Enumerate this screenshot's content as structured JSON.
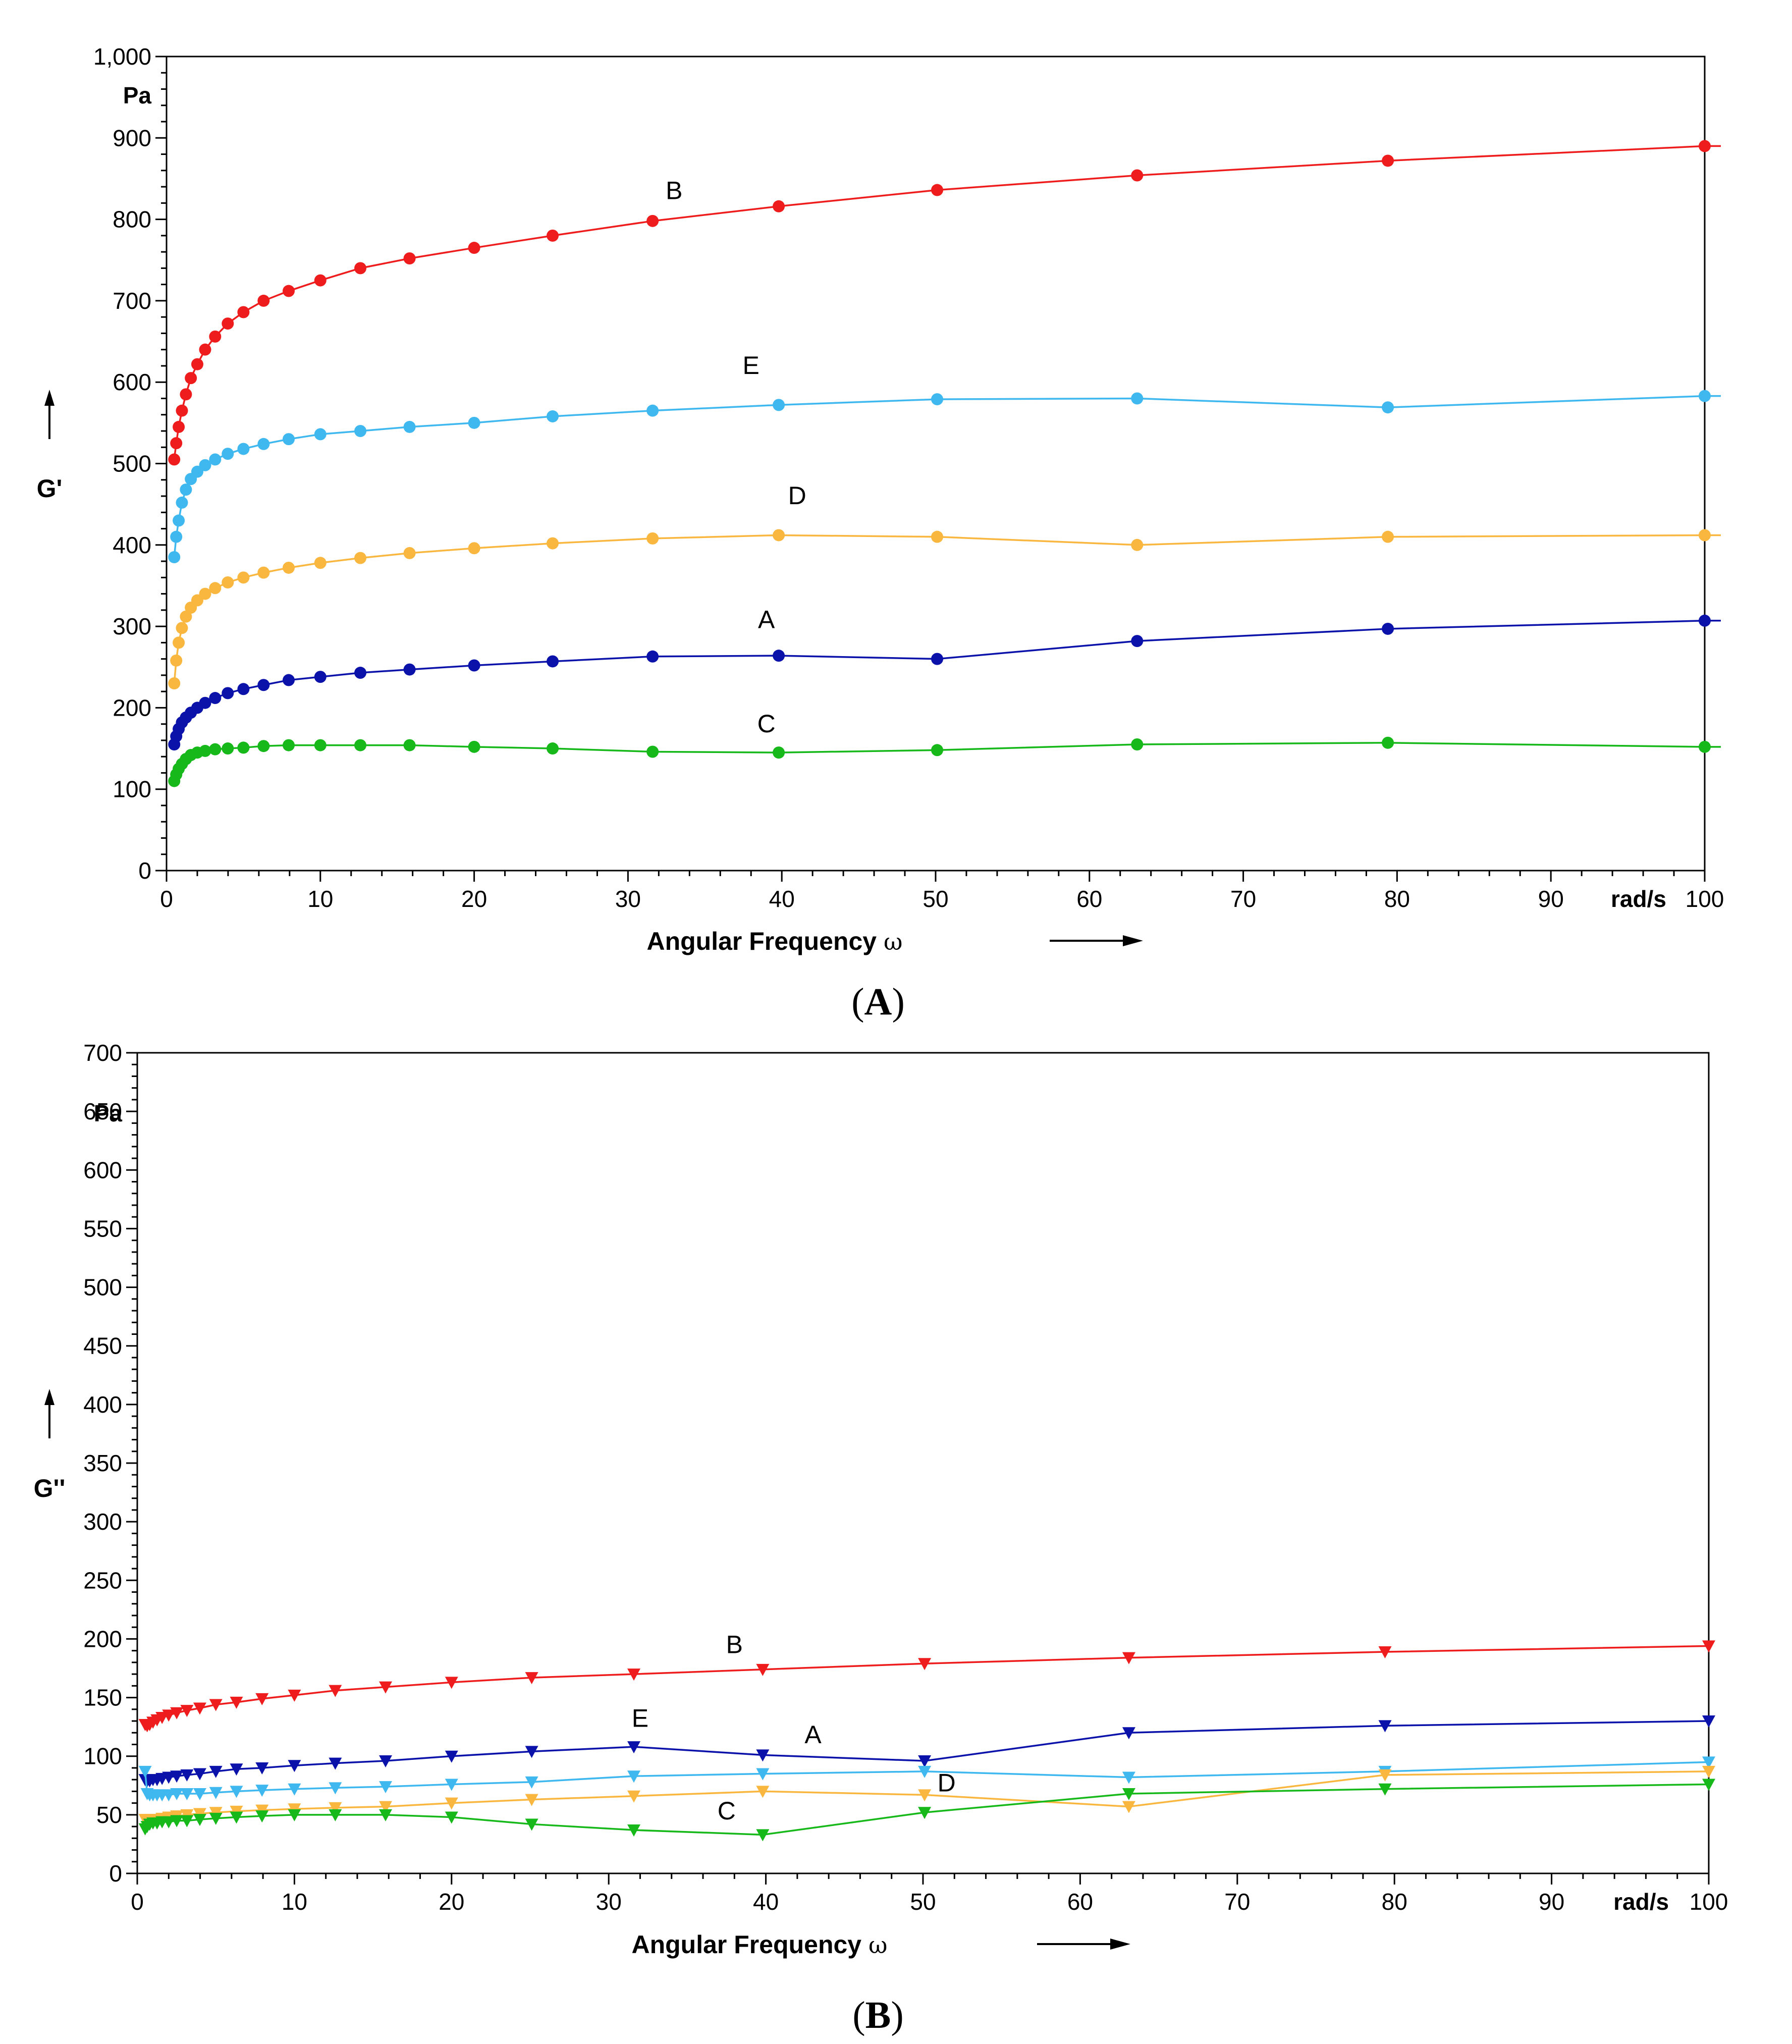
{
  "chart_data": [
    {
      "type": "line",
      "panel_label": "A",
      "ylabel": "G'",
      "yunit": "Pa",
      "xlabel": "Angular Frequency",
      "xsymbol": "ω",
      "xunit": "rad/s",
      "xlim": [
        0,
        100
      ],
      "ylim": [
        0,
        1000
      ],
      "xticks": [
        {
          "value": 0,
          "label": "0"
        },
        {
          "value": 10,
          "label": "10"
        },
        {
          "value": 20,
          "label": "20"
        },
        {
          "value": 30,
          "label": "30"
        },
        {
          "value": 40,
          "label": "40"
        },
        {
          "value": 50,
          "label": "50"
        },
        {
          "value": 60,
          "label": "60"
        },
        {
          "value": 70,
          "label": "70"
        },
        {
          "value": 80,
          "label": "80"
        },
        {
          "value": 90,
          "label": "90"
        },
        {
          "value": 100,
          "label": "100"
        }
      ],
      "yticks": [
        {
          "value": 0,
          "label": "0"
        },
        {
          "value": 100,
          "label": "100"
        },
        {
          "value": 200,
          "label": "200"
        },
        {
          "value": 300,
          "label": "300"
        },
        {
          "value": 400,
          "label": "400"
        },
        {
          "value": 500,
          "label": "500"
        },
        {
          "value": 600,
          "label": "600"
        },
        {
          "value": 700,
          "label": "700"
        },
        {
          "value": 800,
          "label": "800"
        },
        {
          "value": 900,
          "label": "900"
        },
        {
          "value": 1000,
          "label": "1,000"
        }
      ],
      "marker": "circle",
      "x": [
        0.5,
        0.63,
        0.79,
        1.0,
        1.26,
        1.58,
        2.0,
        2.51,
        3.16,
        3.98,
        5.0,
        6.31,
        7.94,
        10.0,
        12.6,
        15.8,
        20.0,
        25.1,
        31.6,
        39.8,
        50.1,
        63.1,
        79.4,
        100.0
      ],
      "series": [
        {
          "name": "B",
          "color": "#ee1c1c",
          "label_at": [
            33,
            825
          ],
          "values": [
            505,
            525,
            545,
            565,
            585,
            605,
            622,
            640,
            656,
            672,
            686,
            700,
            712,
            725,
            740,
            752,
            765,
            780,
            798,
            816,
            836,
            854,
            872,
            890
          ]
        },
        {
          "name": "E",
          "color": "#3fb8f0",
          "label_at": [
            38,
            610
          ],
          "values": [
            385,
            410,
            430,
            452,
            468,
            481,
            490,
            498,
            505,
            512,
            518,
            524,
            530,
            536,
            540,
            545,
            550,
            558,
            565,
            572,
            579,
            580,
            569,
            583
          ]
        },
        {
          "name": "D",
          "color": "#f9b740",
          "label_at": [
            41,
            450
          ],
          "values": [
            230,
            258,
            280,
            298,
            312,
            323,
            332,
            340,
            347,
            354,
            360,
            366,
            372,
            378,
            384,
            390,
            396,
            402,
            408,
            412,
            410,
            400,
            410,
            412
          ]
        },
        {
          "name": "A",
          "color": "#0a12aa",
          "label_at": [
            39,
            298
          ],
          "values": [
            155,
            165,
            174,
            182,
            188,
            194,
            200,
            206,
            212,
            218,
            223,
            228,
            234,
            238,
            243,
            247,
            252,
            257,
            263,
            264,
            260,
            282,
            297,
            307
          ]
        },
        {
          "name": "C",
          "color": "#16b81a",
          "label_at": [
            39,
            170
          ],
          "values": [
            110,
            118,
            125,
            131,
            137,
            142,
            145,
            147,
            149,
            150,
            151,
            153,
            154,
            154,
            154,
            154,
            152,
            150,
            146,
            145,
            148,
            155,
            157,
            152
          ]
        }
      ]
    },
    {
      "type": "line",
      "panel_label": "B",
      "ylabel": "G''",
      "yunit": "Pa",
      "xlabel": "Angular Frequency",
      "xsymbol": "ω",
      "xunit": "rad/s",
      "xlim": [
        0,
        100
      ],
      "ylim": [
        0,
        700
      ],
      "xticks": [
        {
          "value": 0,
          "label": "0"
        },
        {
          "value": 10,
          "label": "10"
        },
        {
          "value": 20,
          "label": "20"
        },
        {
          "value": 30,
          "label": "30"
        },
        {
          "value": 40,
          "label": "40"
        },
        {
          "value": 50,
          "label": "50"
        },
        {
          "value": 60,
          "label": "60"
        },
        {
          "value": 70,
          "label": "70"
        },
        {
          "value": 80,
          "label": "80"
        },
        {
          "value": 90,
          "label": "90"
        },
        {
          "value": 100,
          "label": "100"
        }
      ],
      "yticks": [
        {
          "value": 0,
          "label": "0"
        },
        {
          "value": 50,
          "label": "50"
        },
        {
          "value": 100,
          "label": "100"
        },
        {
          "value": 150,
          "label": "150"
        },
        {
          "value": 200,
          "label": "200"
        },
        {
          "value": 250,
          "label": "250"
        },
        {
          "value": 300,
          "label": "300"
        },
        {
          "value": 350,
          "label": "350"
        },
        {
          "value": 400,
          "label": "400"
        },
        {
          "value": 450,
          "label": "450"
        },
        {
          "value": 500,
          "label": "500"
        },
        {
          "value": 550,
          "label": "550"
        },
        {
          "value": 600,
          "label": "600"
        },
        {
          "value": 650,
          "label": "650"
        },
        {
          "value": 700,
          "label": "700"
        }
      ],
      "marker": "triangle-down",
      "x": [
        0.5,
        0.63,
        0.79,
        1.0,
        1.26,
        1.58,
        2.0,
        2.51,
        3.16,
        3.98,
        5.0,
        6.31,
        7.94,
        10.0,
        12.6,
        15.8,
        20.0,
        25.1,
        31.6,
        39.8,
        50.1,
        63.1,
        79.4,
        100.0
      ],
      "series": [
        {
          "name": "B",
          "color": "#ee1c1c",
          "label_at": [
            38,
            188
          ],
          "values": [
            127,
            126,
            127,
            129,
            131,
            133,
            135,
            137,
            139,
            141,
            144,
            146,
            149,
            152,
            156,
            159,
            163,
            167,
            170,
            174,
            179,
            184,
            189,
            194
          ]
        },
        {
          "name": "A",
          "color": "#0a12aa",
          "label_at": [
            43,
            111
          ],
          "values": [
            80,
            79,
            79,
            80,
            80,
            81,
            82,
            83,
            84,
            85,
            87,
            89,
            90,
            92,
            94,
            96,
            100,
            104,
            108,
            101,
            96,
            120,
            126,
            130
          ]
        },
        {
          "name": "E",
          "color": "#3fb8f0",
          "label_at": [
            32,
            125
          ],
          "values": [
            87,
            68,
            67,
            67,
            67,
            67,
            67,
            68,
            68,
            68,
            69,
            70,
            71,
            72,
            73,
            74,
            76,
            78,
            83,
            85,
            87,
            82,
            87,
            95
          ]
        },
        {
          "name": "D",
          "color": "#f9b740",
          "label_at": [
            51.5,
            70
          ],
          "values": [
            46,
            46,
            46,
            46,
            46,
            47,
            48,
            49,
            50,
            51,
            52,
            53,
            54,
            55,
            56,
            57,
            60,
            63,
            66,
            70,
            67,
            57,
            84,
            87
          ]
        },
        {
          "name": "C",
          "color": "#16b81a",
          "label_at": [
            37.5,
            46
          ],
          "values": [
            38,
            40,
            42,
            43,
            43,
            44,
            44,
            45,
            45,
            46,
            47,
            48,
            49,
            50,
            50,
            50,
            48,
            42,
            37,
            33,
            52,
            68,
            72,
            76
          ]
        }
      ]
    }
  ]
}
